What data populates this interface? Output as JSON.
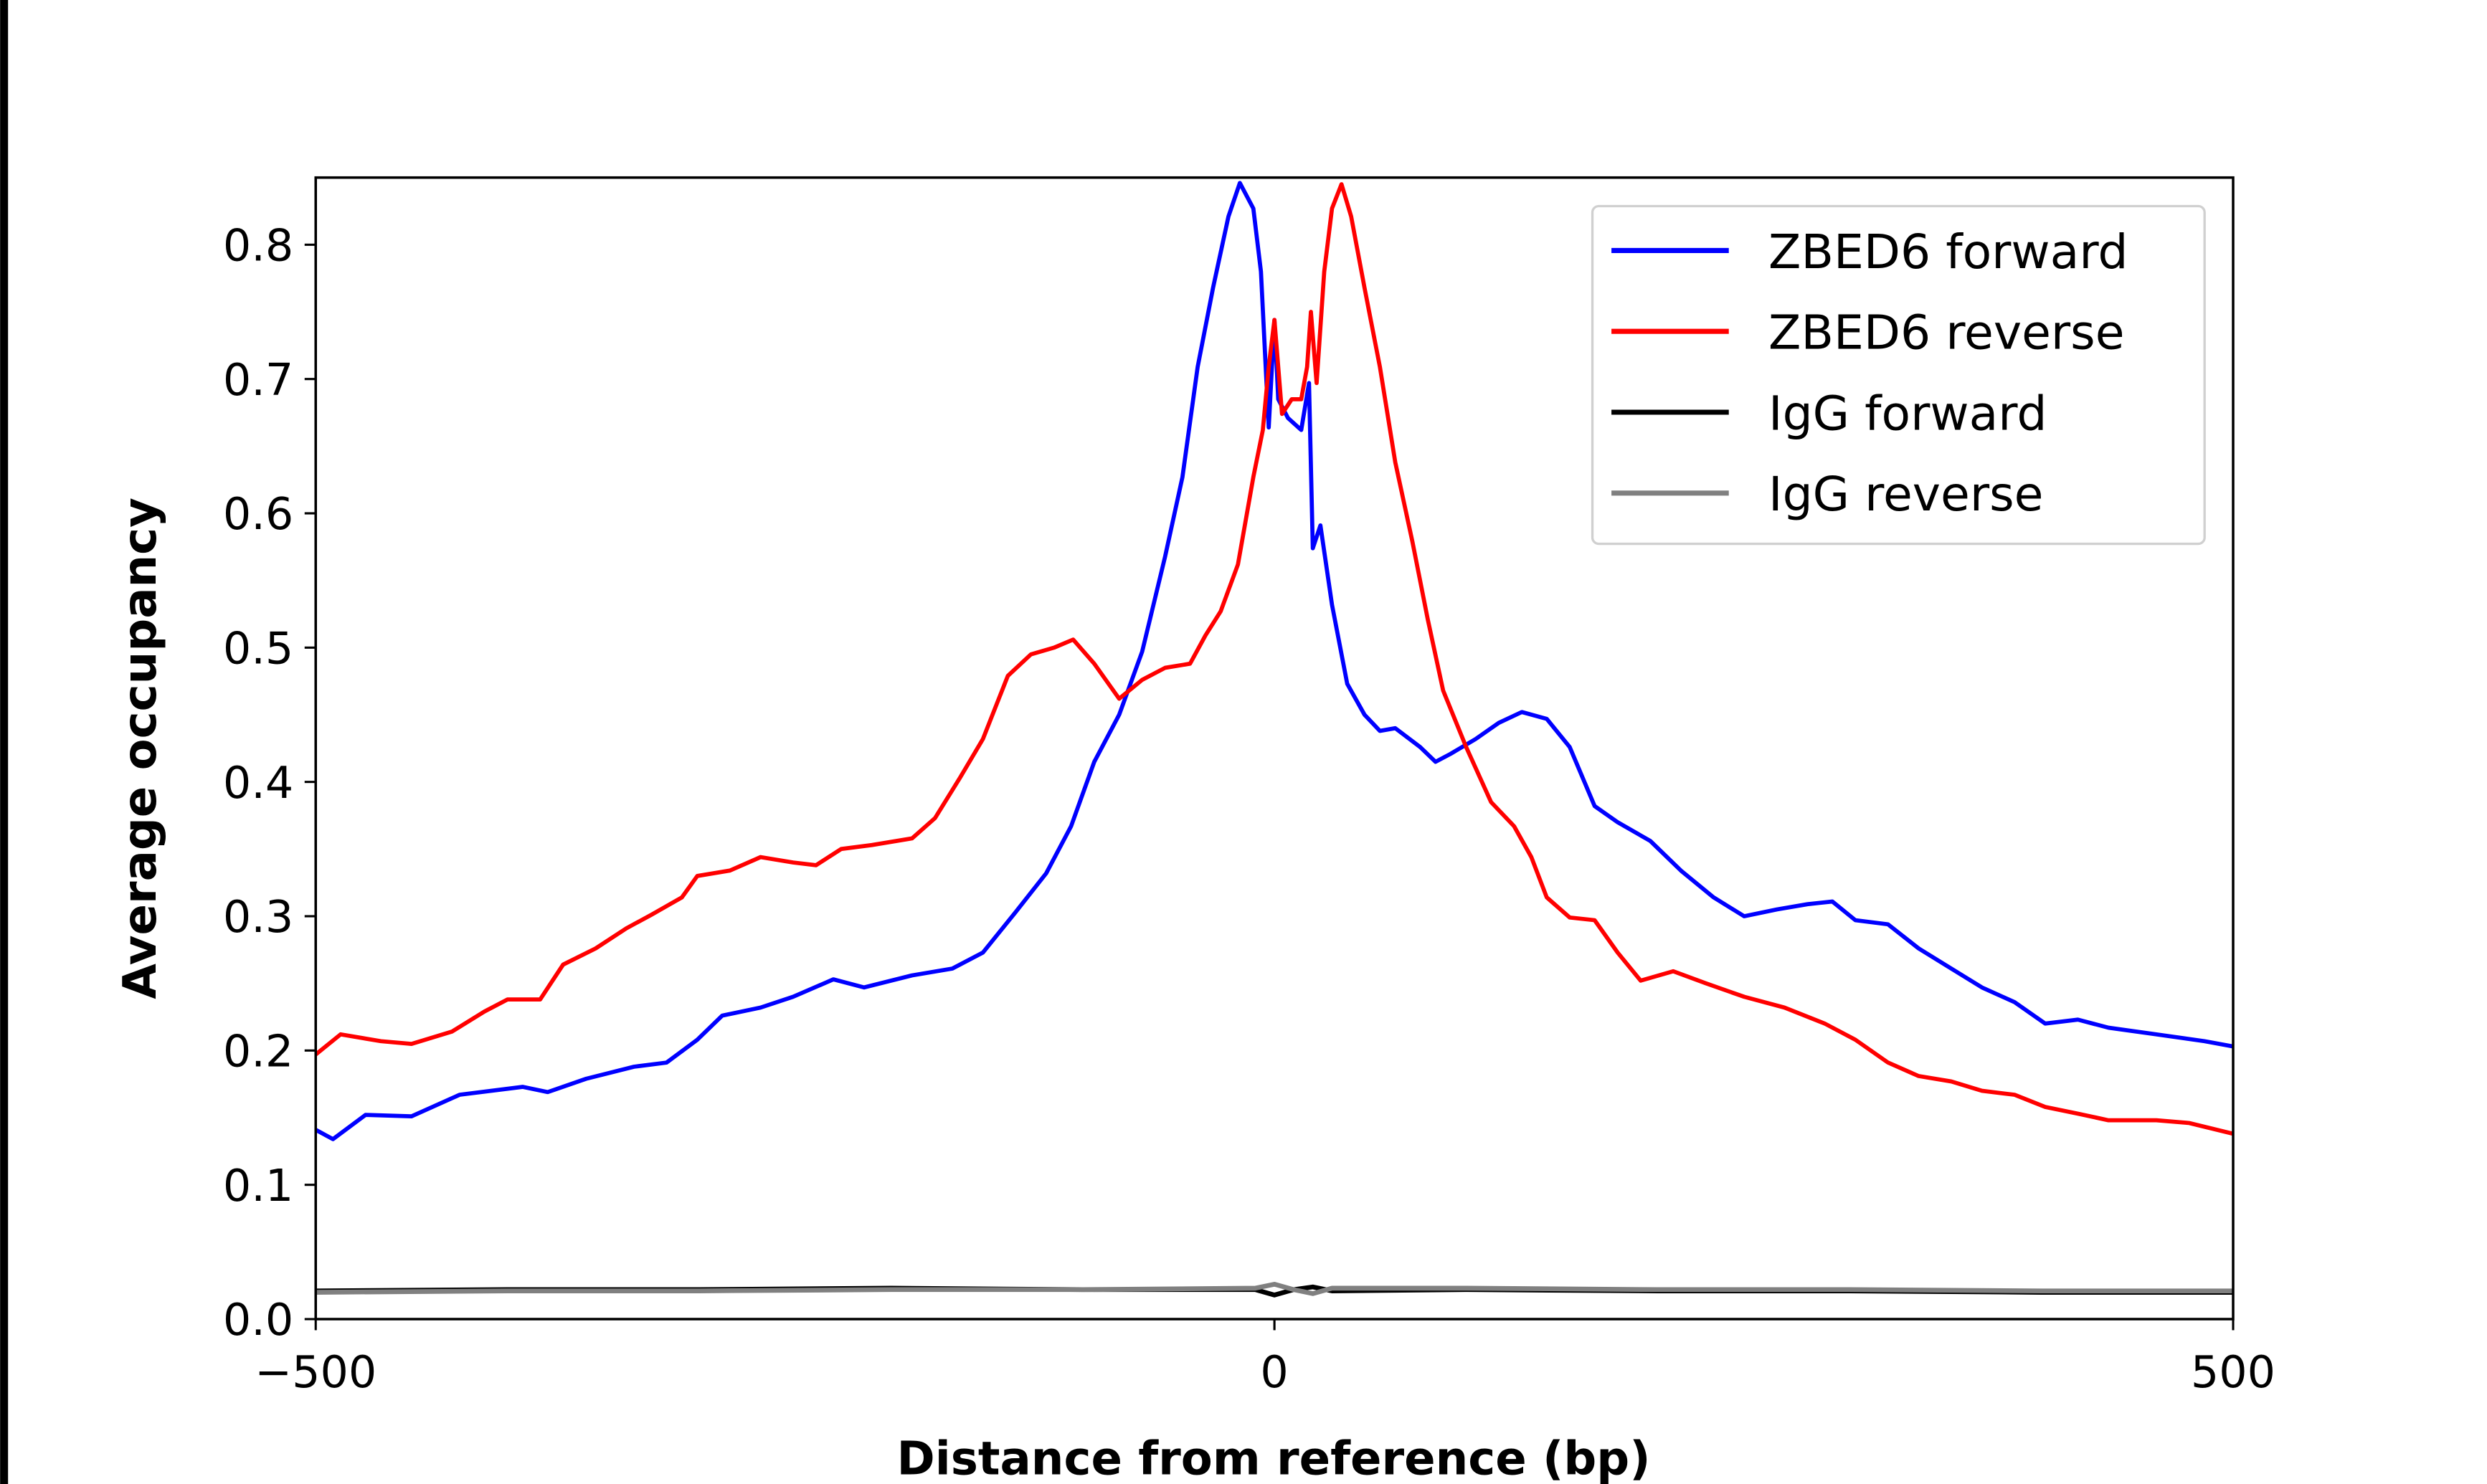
{
  "chart_data": {
    "type": "line",
    "title": "",
    "xlabel": "Distance from reference (bp)",
    "ylabel": "Average occupancy",
    "xlim": [
      -500,
      500
    ],
    "ylim": [
      0,
      0.85
    ],
    "xticks": [
      -500,
      0,
      500
    ],
    "xtick_labels": [
      "−500",
      "0",
      "500"
    ],
    "yticks": [
      0.0,
      0.1,
      0.2,
      0.3,
      0.4,
      0.5,
      0.6,
      0.7,
      0.8
    ],
    "ytick_labels": [
      "0.0",
      "0.1",
      "0.2",
      "0.3",
      "0.4",
      "0.5",
      "0.6",
      "0.7",
      "0.8"
    ],
    "grid": false,
    "legend_position": "top-right",
    "series": [
      {
        "name": "ZBED6 forward",
        "color": "#0000ff",
        "x": [
          -500,
          -491,
          -474,
          -450,
          -425,
          -392,
          -379,
          -359,
          -334,
          -317,
          -301,
          -288,
          -268,
          -251,
          -230,
          -214,
          -189,
          -168,
          -152,
          -135,
          -119,
          -106,
          -94,
          -81,
          -69,
          -57,
          -48,
          -40,
          -32,
          -24,
          -18,
          -11,
          -7,
          -3,
          0,
          2,
          7,
          14,
          18,
          20,
          24,
          30,
          38,
          47,
          55,
          63,
          76,
          84,
          92,
          105,
          117,
          129,
          142,
          154,
          167,
          179,
          196,
          212,
          229,
          245,
          262,
          278,
          291,
          303,
          320,
          336,
          353,
          369,
          386,
          402,
          419,
          435,
          460,
          485,
          500
        ],
        "y": [
          0.141,
          0.134,
          0.152,
          0.151,
          0.167,
          0.173,
          0.169,
          0.179,
          0.188,
          0.191,
          0.208,
          0.226,
          0.232,
          0.24,
          0.253,
          0.247,
          0.256,
          0.261,
          0.273,
          0.303,
          0.332,
          0.367,
          0.415,
          0.45,
          0.497,
          0.568,
          0.627,
          0.709,
          0.768,
          0.821,
          0.846,
          0.827,
          0.78,
          0.664,
          0.744,
          0.685,
          0.671,
          0.662,
          0.697,
          0.574,
          0.591,
          0.532,
          0.473,
          0.45,
          0.438,
          0.44,
          0.426,
          0.415,
          0.421,
          0.432,
          0.444,
          0.452,
          0.447,
          0.426,
          0.382,
          0.37,
          0.356,
          0.334,
          0.314,
          0.3,
          0.305,
          0.309,
          0.311,
          0.297,
          0.294,
          0.276,
          0.261,
          0.247,
          0.236,
          0.22,
          0.223,
          0.217,
          0.212,
          0.207,
          0.203
        ]
      },
      {
        "name": "ZBED6 reverse",
        "color": "#ff0000",
        "x": [
          -500,
          -487,
          -466,
          -450,
          -429,
          -412,
          -400,
          -383,
          -371,
          -354,
          -338,
          -325,
          -309,
          -301,
          -284,
          -268,
          -251,
          -239,
          -226,
          -210,
          -189,
          -177,
          -164,
          -152,
          -139,
          -127,
          -115,
          -105,
          -94,
          -81,
          -69,
          -57,
          -44,
          -36,
          -28,
          -19,
          -11,
          -6,
          -3,
          0,
          4,
          9,
          14,
          17,
          19,
          22,
          26,
          30,
          35,
          40,
          47,
          55,
          63,
          72,
          80,
          88,
          100,
          113,
          125,
          134,
          142,
          154,
          167,
          179,
          191,
          208,
          225,
          245,
          266,
          287,
          303,
          320,
          336,
          353,
          369,
          386,
          402,
          419,
          435,
          460,
          477,
          500
        ],
        "y": [
          0.197,
          0.212,
          0.207,
          0.205,
          0.214,
          0.229,
          0.238,
          0.238,
          0.264,
          0.276,
          0.291,
          0.301,
          0.314,
          0.33,
          0.334,
          0.344,
          0.34,
          0.338,
          0.35,
          0.353,
          0.358,
          0.373,
          0.403,
          0.432,
          0.479,
          0.495,
          0.5,
          0.506,
          0.488,
          0.462,
          0.476,
          0.485,
          0.488,
          0.509,
          0.527,
          0.562,
          0.627,
          0.662,
          0.709,
          0.744,
          0.674,
          0.685,
          0.685,
          0.709,
          0.75,
          0.697,
          0.78,
          0.827,
          0.845,
          0.821,
          0.768,
          0.709,
          0.638,
          0.579,
          0.521,
          0.468,
          0.426,
          0.385,
          0.367,
          0.344,
          0.314,
          0.299,
          0.297,
          0.273,
          0.252,
          0.259,
          0.25,
          0.24,
          0.232,
          0.22,
          0.208,
          0.191,
          0.181,
          0.177,
          0.17,
          0.167,
          0.158,
          0.153,
          0.148,
          0.148,
          0.146,
          0.138
        ]
      },
      {
        "name": "IgG forward",
        "color": "#000000",
        "x": [
          -500,
          -400,
          -300,
          -200,
          -100,
          -10,
          0,
          10,
          20,
          30,
          100,
          200,
          300,
          400,
          500
        ],
        "y": [
          0.021,
          0.022,
          0.022,
          0.023,
          0.022,
          0.022,
          0.018,
          0.022,
          0.024,
          0.021,
          0.022,
          0.021,
          0.021,
          0.02,
          0.02
        ]
      },
      {
        "name": "IgG reverse",
        "color": "#808080",
        "x": [
          -500,
          -400,
          -300,
          -200,
          -100,
          -10,
          0,
          10,
          20,
          30,
          100,
          200,
          300,
          400,
          500
        ],
        "y": [
          0.02,
          0.021,
          0.021,
          0.022,
          0.022,
          0.023,
          0.026,
          0.022,
          0.019,
          0.023,
          0.023,
          0.022,
          0.022,
          0.021,
          0.021
        ]
      }
    ]
  }
}
